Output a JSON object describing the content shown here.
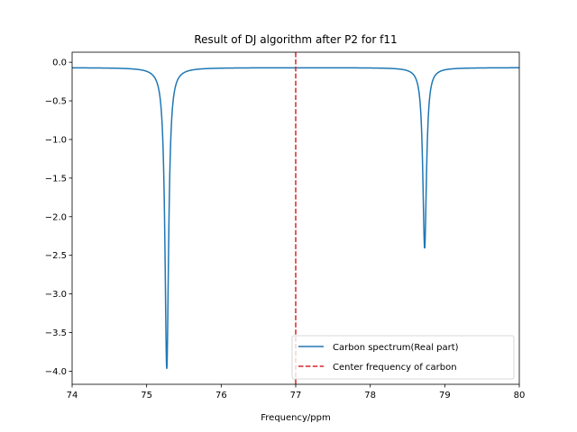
{
  "chart_data": {
    "type": "line",
    "title": "Result of DJ algorithm after P2 for f11",
    "xlabel": "Frequency/ppm",
    "ylabel": "",
    "xlim": [
      74,
      80
    ],
    "ylim": [
      -4.17,
      0.13
    ],
    "xticks": [
      74,
      75,
      76,
      77,
      78,
      79,
      80
    ],
    "xtick_labels": [
      "74",
      "75",
      "76",
      "77",
      "78",
      "79",
      "80"
    ],
    "yticks": [
      0.0,
      -0.5,
      -1.0,
      -1.5,
      -2.0,
      -2.5,
      -3.0,
      -3.5,
      -4.0
    ],
    "ytick_labels": [
      "0.0",
      "−0.5",
      "−1.0",
      "−1.5",
      "−2.0",
      "−2.5",
      "−3.0",
      "−3.5",
      "−4.0"
    ],
    "grid": false,
    "legend_position": "lower-right",
    "series": [
      {
        "name": "Carbon spectrum(Real part)",
        "color": "#1f77b4",
        "style": "solid",
        "baseline": -0.07,
        "peaks": [
          {
            "center": 75.27,
            "depth": 3.9,
            "width": 0.03
          },
          {
            "center": 78.73,
            "depth": 2.34,
            "width": 0.03
          }
        ]
      },
      {
        "name": "Center frequency of carbon",
        "color": "#d62728",
        "style": "dashed",
        "x": [
          77,
          77
        ],
        "y": [
          -4.17,
          0.13
        ]
      }
    ]
  }
}
